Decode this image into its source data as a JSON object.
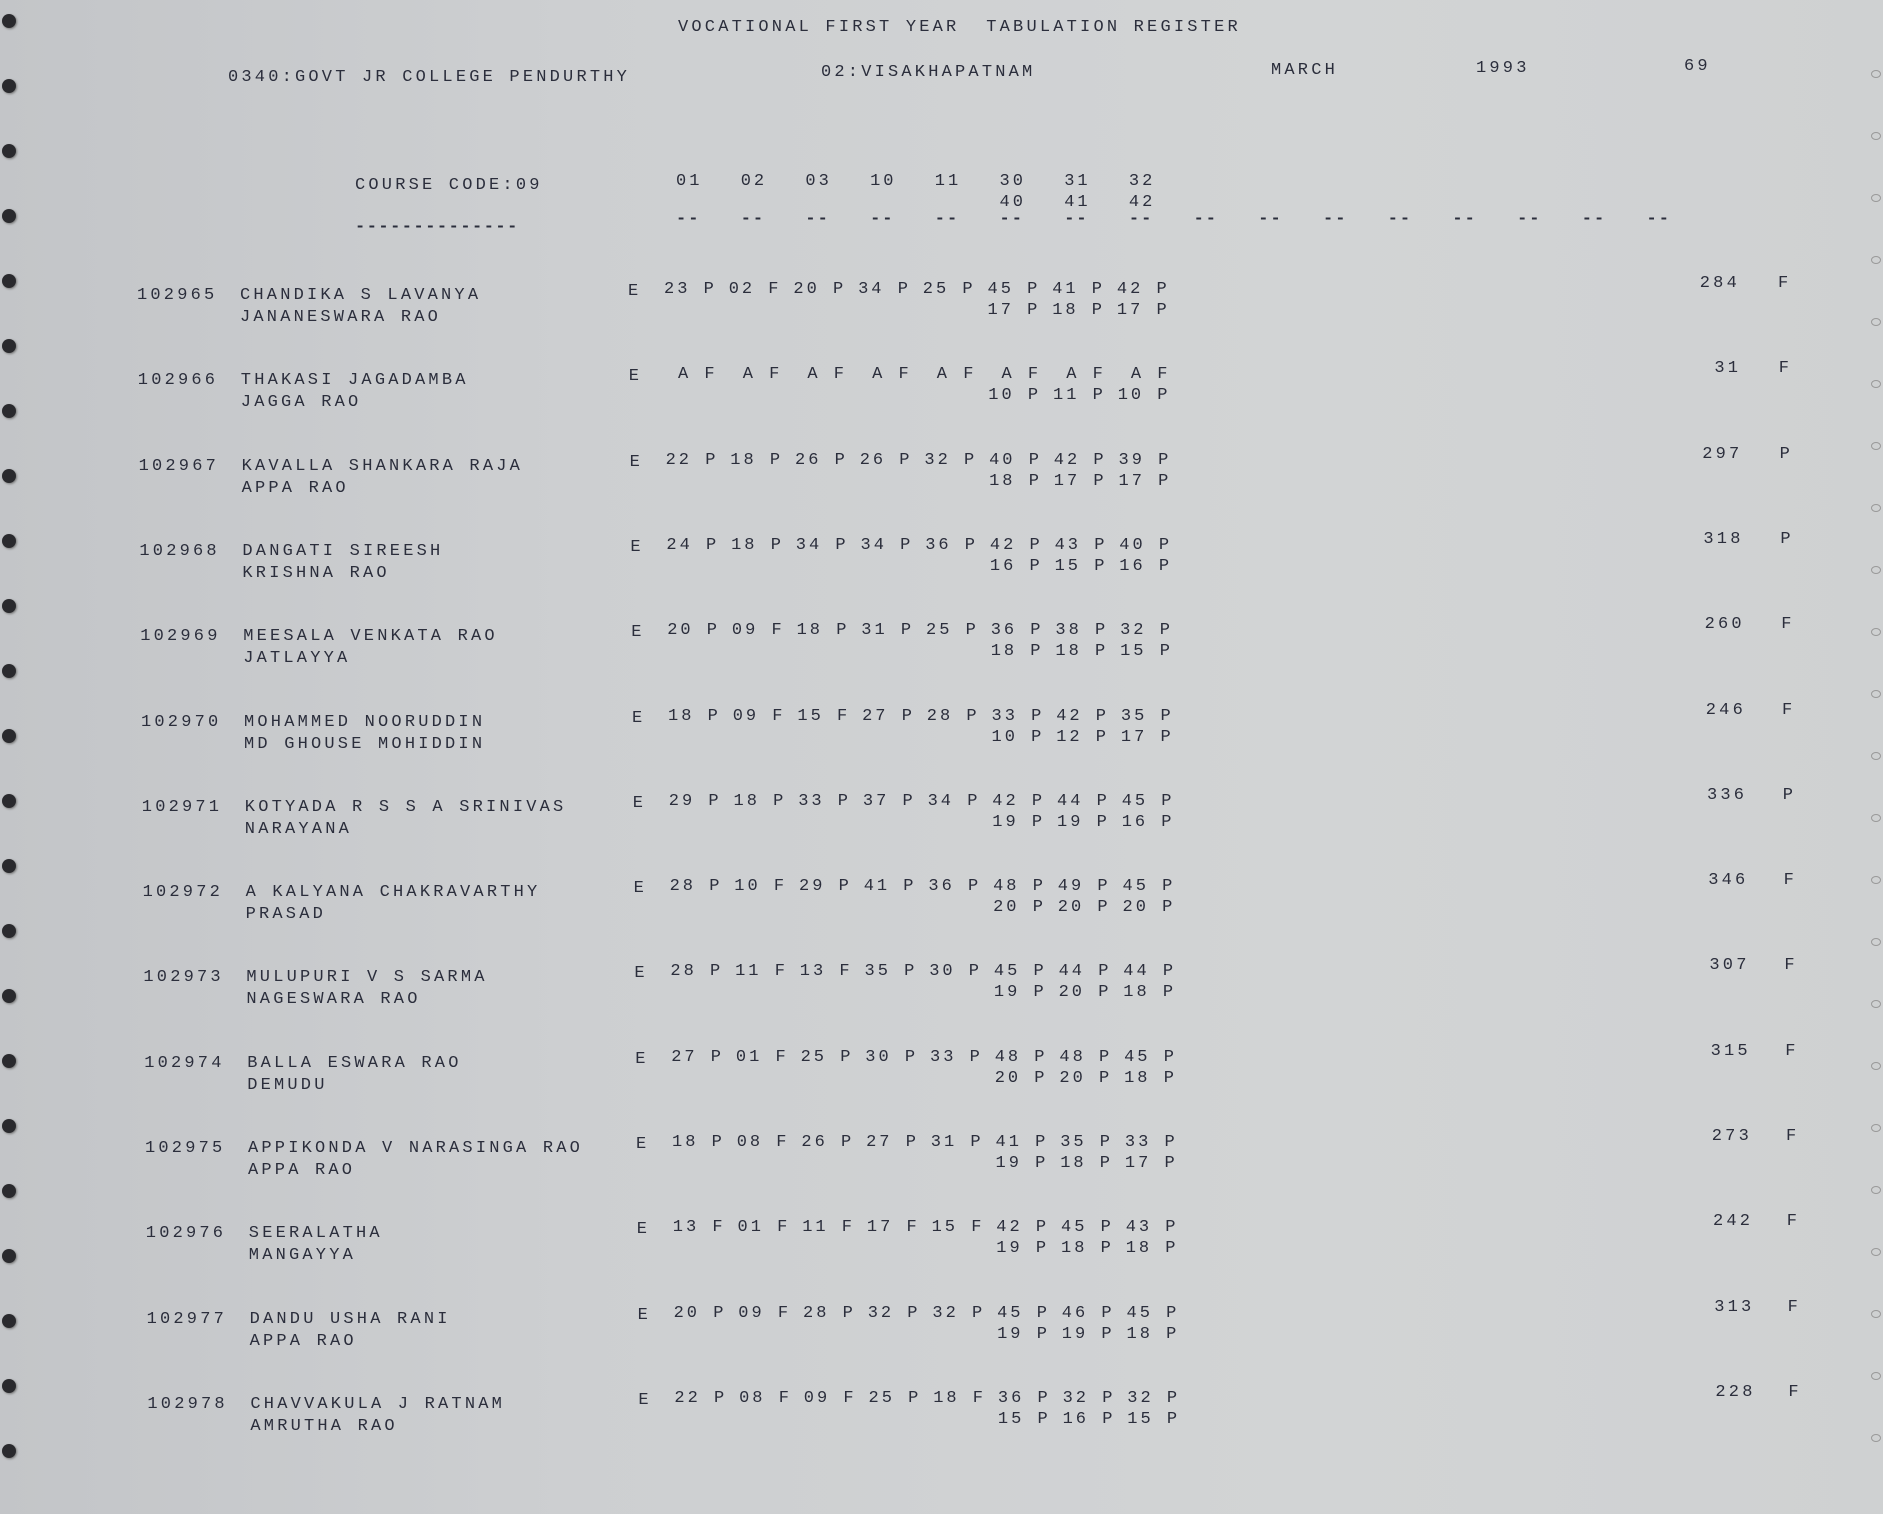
{
  "header": {
    "title": "VOCATIONAL FIRST YEAR  TABULATION REGISTER",
    "college": "0340:GOVT JR COLLEGE PENDURTHY",
    "district": "02:VISAKHAPATNAM",
    "month": "MARCH",
    "year": "1993",
    "page": "69"
  },
  "course": {
    "label": "COURSE CODE:09",
    "underline": "--------------",
    "columns": [
      "01",
      "02",
      "03",
      "10",
      "11",
      "30",
      "31",
      "32"
    ],
    "columns2": [
      "40",
      "41",
      "42"
    ],
    "dash": "--"
  },
  "students": [
    {
      "id": "102965",
      "name": "CHANDIKA S LAVANYA",
      "father": "JANANESWARA RAO",
      "exam": "E",
      "marks": [
        "23 P",
        "02 F",
        "20 P",
        "34 P",
        "25 P",
        "45 P",
        "41 P",
        "42 P"
      ],
      "marks2": [
        "17 P",
        "18 P",
        "17 P"
      ],
      "total": "284",
      "result": "F"
    },
    {
      "id": "102966",
      "name": "THAKASI JAGADAMBA",
      "father": "JAGGA RAO",
      "exam": "E",
      "marks": [
        " A F",
        " A F",
        " A F",
        " A F",
        " A F",
        " A F",
        " A F",
        " A F"
      ],
      "marks2": [
        "10 P",
        "11 P",
        "10 P"
      ],
      "total": "31",
      "result": "F"
    },
    {
      "id": "102967",
      "name": "KAVALLA SHANKARA RAJA",
      "father": "APPA RAO",
      "exam": "E",
      "marks": [
        "22 P",
        "18 P",
        "26 P",
        "26 P",
        "32 P",
        "40 P",
        "42 P",
        "39 P"
      ],
      "marks2": [
        "18 P",
        "17 P",
        "17 P"
      ],
      "total": "297",
      "result": "P"
    },
    {
      "id": "102968",
      "name": "DANGATI SIREESH",
      "father": "KRISHNA RAO",
      "exam": "E",
      "marks": [
        "24 P",
        "18 P",
        "34 P",
        "34 P",
        "36 P",
        "42 P",
        "43 P",
        "40 P"
      ],
      "marks2": [
        "16 P",
        "15 P",
        "16 P"
      ],
      "total": "318",
      "result": "P"
    },
    {
      "id": "102969",
      "name": "MEESALA VENKATA RAO",
      "father": "JATLAYYA",
      "exam": "E",
      "marks": [
        "20 P",
        "09 F",
        "18 P",
        "31 P",
        "25 P",
        "36 P",
        "38 P",
        "32 P"
      ],
      "marks2": [
        "18 P",
        "18 P",
        "15 P"
      ],
      "total": "260",
      "result": "F"
    },
    {
      "id": "102970",
      "name": "MOHAMMED NOORUDDIN",
      "father": "MD GHOUSE MOHIDDIN",
      "exam": "E",
      "marks": [
        "18 P",
        "09 F",
        "15 F",
        "27 P",
        "28 P",
        "33 P",
        "42 P",
        "35 P"
      ],
      "marks2": [
        "10 P",
        "12 P",
        "17 P"
      ],
      "total": "246",
      "result": "F"
    },
    {
      "id": "102971",
      "name": "KOTYADA R S S A SRINIVAS",
      "father": "NARAYANA",
      "exam": "E",
      "marks": [
        "29 P",
        "18 P",
        "33 P",
        "37 P",
        "34 P",
        "42 P",
        "44 P",
        "45 P"
      ],
      "marks2": [
        "19 P",
        "19 P",
        "16 P"
      ],
      "total": "336",
      "result": "P"
    },
    {
      "id": "102972",
      "name": "A KALYANA CHAKRAVARTHY",
      "father": "PRASAD",
      "exam": "E",
      "marks": [
        "28 P",
        "10 F",
        "29 P",
        "41 P",
        "36 P",
        "48 P",
        "49 P",
        "45 P"
      ],
      "marks2": [
        "20 P",
        "20 P",
        "20 P"
      ],
      "total": "346",
      "result": "F"
    },
    {
      "id": "102973",
      "name": "MULUPURI V S SARMA",
      "father": "NAGESWARA RAO",
      "exam": "E",
      "marks": [
        "28 P",
        "11 F",
        "13 F",
        "35 P",
        "30 P",
        "45 P",
        "44 P",
        "44 P"
      ],
      "marks2": [
        "19 P",
        "20 P",
        "18 P"
      ],
      "total": "307",
      "result": "F"
    },
    {
      "id": "102974",
      "name": "BALLA ESWARA RAO",
      "father": "DEMUDU",
      "exam": "E",
      "marks": [
        "27 P",
        "01 F",
        "25 P",
        "30 P",
        "33 P",
        "48 P",
        "48 P",
        "45 P"
      ],
      "marks2": [
        "20 P",
        "20 P",
        "18 P"
      ],
      "total": "315",
      "result": "F"
    },
    {
      "id": "102975",
      "name": "APPIKONDA V NARASINGA RAO",
      "father": "APPA RAO",
      "exam": "E",
      "marks": [
        "18 P",
        "08 F",
        "26 P",
        "27 P",
        "31 P",
        "41 P",
        "35 P",
        "33 P"
      ],
      "marks2": [
        "19 P",
        "18 P",
        "17 P"
      ],
      "total": "273",
      "result": "F"
    },
    {
      "id": "102976",
      "name": "SEERALATHA",
      "father": "MANGAYYA",
      "exam": "E",
      "marks": [
        "13 F",
        "01 F",
        "11 F",
        "17 F",
        "15 F",
        "42 P",
        "45 P",
        "43 P"
      ],
      "marks2": [
        "19 P",
        "18 P",
        "18 P"
      ],
      "total": "242",
      "result": "F"
    },
    {
      "id": "102977",
      "name": "DANDU USHA RANI",
      "father": "APPA RAO",
      "exam": "E",
      "marks": [
        "20 P",
        "09 F",
        "28 P",
        "32 P",
        "32 P",
        "45 P",
        "46 P",
        "45 P"
      ],
      "marks2": [
        "19 P",
        "19 P",
        "18 P"
      ],
      "total": "313",
      "result": "F"
    },
    {
      "id": "102978",
      "name": "CHAVVAKULA J RATNAM",
      "father": "AMRUTHA RAO",
      "exam": "E",
      "marks": [
        "22 P",
        "08 F",
        "09 F",
        "25 P",
        "18 F",
        "36 P",
        "32 P",
        "32 P"
      ],
      "marks2": [
        "15 P",
        "16 P",
        "15 P"
      ],
      "total": "228",
      "result": "F"
    }
  ]
}
